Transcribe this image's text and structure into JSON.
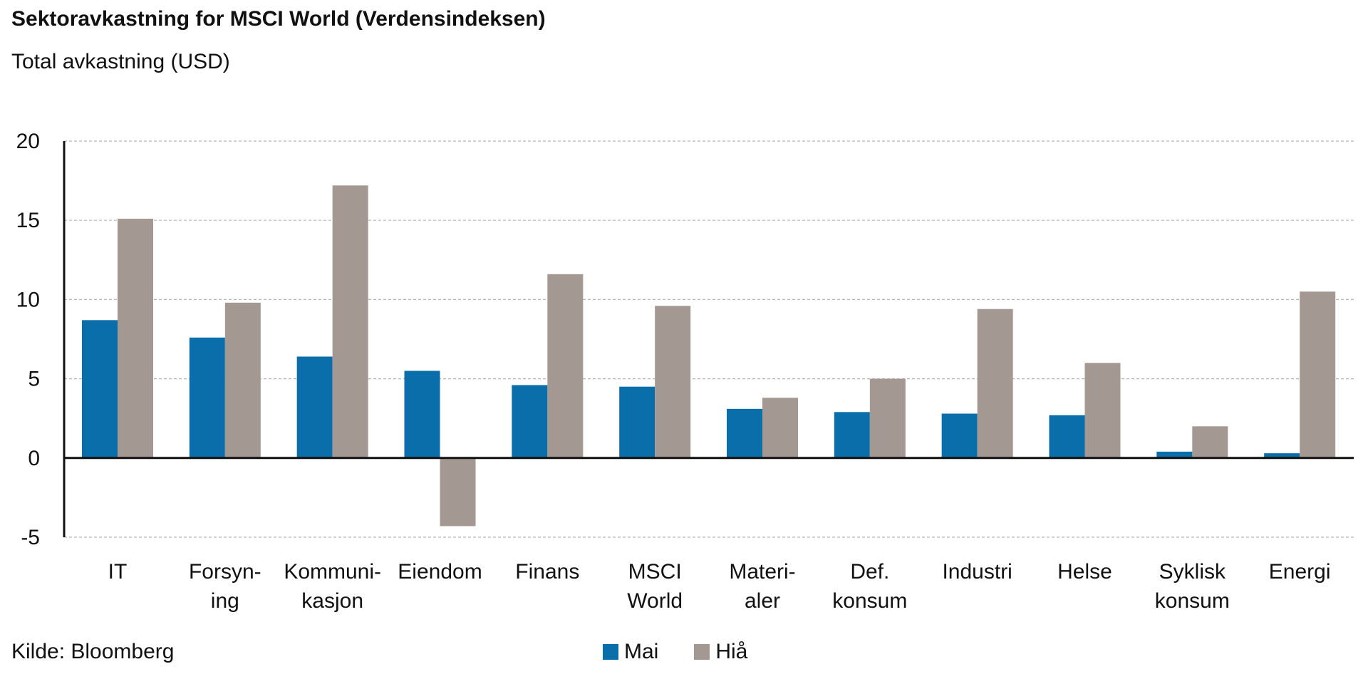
{
  "title": "Sektoravkastning for MSCI World (Verdensindeksen)",
  "subtitle": "Total avkastning (USD)",
  "source": "Kilde: Bloomberg",
  "chart_data": {
    "type": "bar",
    "categories": [
      [
        "IT"
      ],
      [
        "Forsyn-",
        "ing"
      ],
      [
        "Kommuni-",
        "kasjon"
      ],
      [
        "Eiendom"
      ],
      [
        "Finans"
      ],
      [
        "MSCI",
        "World"
      ],
      [
        "Materi-",
        "aler"
      ],
      [
        "Def.",
        "konsum"
      ],
      [
        "Industri"
      ],
      [
        "Helse"
      ],
      [
        "Syklisk",
        "konsum"
      ],
      [
        "Energi"
      ]
    ],
    "series": [
      {
        "name": "Mai",
        "color": "#0a6eaa",
        "values": [
          8.7,
          7.6,
          6.4,
          5.5,
          4.6,
          4.5,
          3.1,
          2.9,
          2.8,
          2.7,
          0.4,
          0.3
        ]
      },
      {
        "name": "Hiå",
        "color": "#a39892",
        "values": [
          15.1,
          9.8,
          17.2,
          -4.3,
          11.6,
          9.6,
          3.8,
          5.0,
          9.4,
          6.0,
          2.0,
          10.5
        ]
      }
    ],
    "ylim": [
      -5,
      20
    ],
    "yticks": [
      20,
      15,
      10,
      5,
      0,
      -5
    ],
    "grid": true,
    "legend": "bottom-center"
  }
}
